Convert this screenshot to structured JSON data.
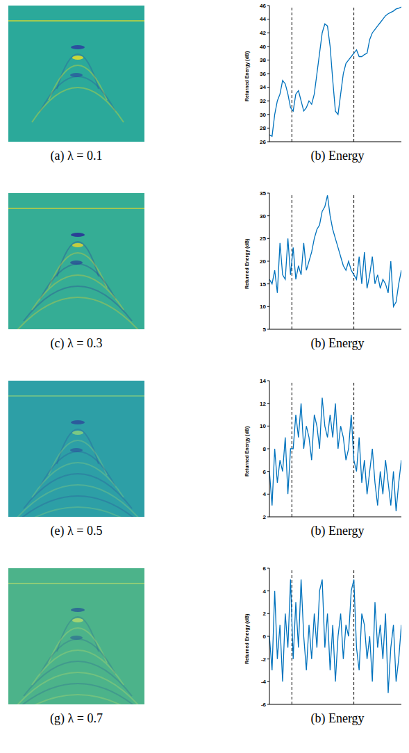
{
  "images": [
    {
      "caption": "(a) λ = 0.1"
    },
    {
      "caption": "(c) λ = 0.3"
    },
    {
      "caption": "(e) λ = 0.5"
    },
    {
      "caption": "(g) λ = 0.7"
    }
  ],
  "chart_data": [
    {
      "type": "line",
      "title": "(b) Energy",
      "ylabel": "Returned Energy (dB)",
      "color": "#0072bd",
      "tick_labels": "y",
      "grid": false,
      "xlim": [
        0,
        100
      ],
      "ylim": [
        26,
        46
      ],
      "yticks": [
        26,
        28,
        30,
        32,
        34,
        36,
        38,
        40,
        42,
        44,
        46
      ],
      "vlines": [
        17,
        64
      ],
      "x": [
        0,
        2,
        4,
        6,
        8,
        10,
        12,
        14,
        16,
        18,
        20,
        22,
        24,
        26,
        28,
        30,
        32,
        34,
        36,
        38,
        40,
        42,
        44,
        46,
        48,
        50,
        52,
        54,
        56,
        58,
        60,
        62,
        64,
        66,
        68,
        70,
        72,
        74,
        76,
        78,
        80,
        82,
        84,
        86,
        88,
        90,
        92,
        94,
        96,
        98,
        100
      ],
      "values": [
        27,
        26.8,
        30,
        32,
        33,
        35,
        34.5,
        33,
        31,
        30.5,
        33,
        33.5,
        32,
        30.5,
        31,
        32,
        31.5,
        33,
        36,
        39,
        42,
        43.3,
        43,
        40,
        35,
        30.5,
        30,
        33,
        36,
        37.5,
        38,
        38.5,
        39,
        39.5,
        38.5,
        38.5,
        38.8,
        39,
        41,
        42,
        42.5,
        43,
        43.5,
        44,
        44.5,
        44.8,
        45,
        45.2,
        45.5,
        45.6,
        45.8
      ]
    },
    {
      "type": "line",
      "title": "(b) Energy",
      "ylabel": "Returned Energy (dB)",
      "color": "#0072bd",
      "tick_labels": "y",
      "grid": false,
      "xlim": [
        0,
        100
      ],
      "ylim": [
        5,
        35
      ],
      "yticks": [
        5,
        10,
        15,
        20,
        25,
        30,
        35
      ],
      "vlines": [
        17,
        64
      ],
      "x": [
        0,
        2,
        4,
        6,
        8,
        10,
        12,
        14,
        16,
        18,
        20,
        22,
        24,
        26,
        28,
        30,
        32,
        34,
        36,
        38,
        40,
        42,
        44,
        46,
        48,
        50,
        52,
        54,
        56,
        58,
        60,
        62,
        64,
        66,
        68,
        70,
        72,
        74,
        76,
        78,
        80,
        82,
        84,
        86,
        88,
        90,
        92,
        94,
        96,
        98,
        100
      ],
      "values": [
        16,
        15,
        18,
        13,
        24,
        17,
        16,
        25,
        17,
        23,
        16,
        19,
        17,
        24,
        18,
        20,
        22,
        25,
        27,
        28,
        31,
        32,
        34.5,
        30,
        27,
        25,
        23,
        21,
        19,
        18,
        20,
        18,
        17,
        16,
        21,
        15,
        22,
        14,
        17,
        21,
        15,
        17,
        14,
        16,
        15,
        13,
        20,
        10,
        11,
        15,
        18
      ]
    },
    {
      "type": "line",
      "title": "(b) Energy",
      "ylabel": "Returned Energy (dB)",
      "color": "#0072bd",
      "tick_labels": "y",
      "grid": false,
      "xlim": [
        0,
        100
      ],
      "ylim": [
        2,
        14
      ],
      "yticks": [
        2,
        4,
        6,
        8,
        10,
        12,
        14
      ],
      "vlines": [
        17,
        64
      ],
      "x": [
        0,
        2,
        4,
        6,
        8,
        10,
        12,
        14,
        16,
        18,
        20,
        22,
        24,
        26,
        28,
        30,
        32,
        34,
        36,
        38,
        40,
        42,
        44,
        46,
        48,
        50,
        52,
        54,
        56,
        58,
        60,
        62,
        64,
        66,
        68,
        70,
        72,
        74,
        76,
        78,
        80,
        82,
        84,
        86,
        88,
        90,
        92,
        94,
        96,
        98,
        100
      ],
      "values": [
        6,
        3,
        8,
        5,
        7,
        6,
        9,
        4,
        8,
        8,
        11,
        9,
        12,
        8,
        10,
        9,
        7,
        11,
        10,
        8,
        12.5,
        10,
        9,
        11,
        9,
        12,
        8,
        10,
        9,
        7,
        8,
        11,
        7,
        6,
        9,
        5,
        7,
        4,
        6,
        8,
        5,
        3,
        6,
        4,
        7,
        5,
        3,
        6,
        2.5,
        5,
        7
      ]
    },
    {
      "type": "line",
      "title": "(b) Energy",
      "ylabel": "Returned Energy (dB)",
      "color": "#0072bd",
      "tick_labels": "y",
      "grid": false,
      "xlim": [
        0,
        100
      ],
      "ylim": [
        -6,
        6
      ],
      "yticks": [
        -6,
        -4,
        -2,
        0,
        2,
        4,
        6
      ],
      "vlines": [
        17,
        64
      ],
      "x": [
        0,
        2,
        4,
        6,
        8,
        10,
        12,
        14,
        16,
        18,
        20,
        22,
        24,
        26,
        28,
        30,
        32,
        34,
        36,
        38,
        40,
        42,
        44,
        46,
        48,
        50,
        52,
        54,
        56,
        58,
        60,
        62,
        64,
        66,
        68,
        70,
        72,
        74,
        76,
        78,
        80,
        82,
        84,
        86,
        88,
        90,
        92,
        94,
        96,
        98,
        100
      ],
      "values": [
        0,
        -3,
        4,
        -2,
        1,
        -4,
        2,
        -1,
        5,
        -2,
        3,
        -1,
        5,
        0,
        -3,
        1,
        -2,
        2,
        -1,
        4,
        5,
        -1,
        2,
        -3,
        1,
        -4,
        0,
        2,
        -2,
        1,
        0,
        4,
        5,
        -1,
        -3,
        2,
        1,
        -2,
        0,
        -4,
        3,
        -1,
        1,
        -2,
        2,
        -5,
        -1,
        1,
        -4,
        -2,
        1
      ]
    }
  ]
}
